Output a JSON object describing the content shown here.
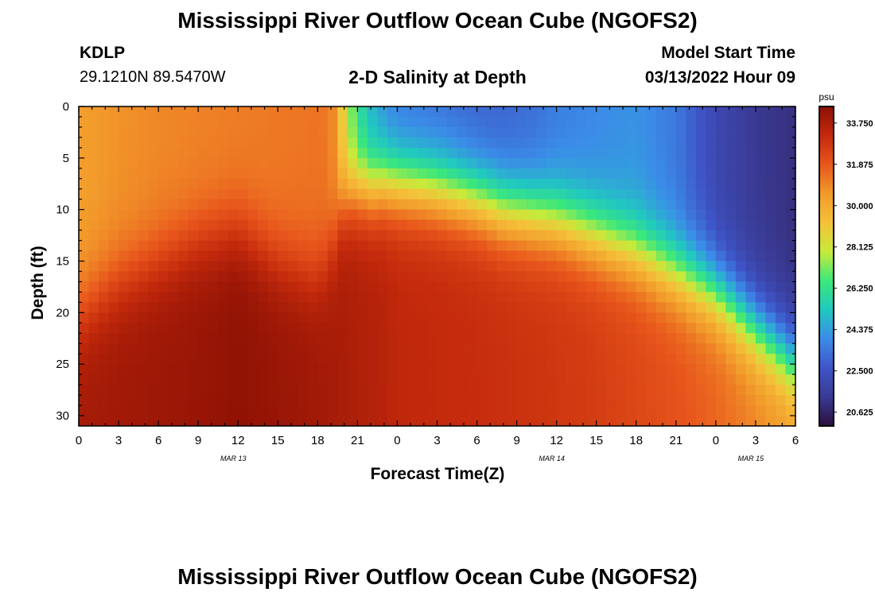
{
  "page": {
    "title_top": "Mississippi River Outflow Ocean Cube (NGOFS2)",
    "title_bottom": "Mississippi River Outflow Ocean Cube (NGOFS2)",
    "station_id": "KDLP",
    "station_coords": "29.1210N  89.5470W",
    "model_start_label": "Model Start Time",
    "model_start_value": "03/13/2022 Hour 09"
  },
  "chart_data": {
    "type": "heatmap",
    "title": "2-D Salinity at Depth",
    "xlabel": "Forecast Time(Z)",
    "ylabel": "Depth (ft)",
    "x_tick_labels": [
      "0",
      "3",
      "6",
      "9",
      "12",
      "15",
      "18",
      "21",
      "0",
      "3",
      "6",
      "9",
      "12",
      "15",
      "18",
      "21",
      "0",
      "3",
      "6"
    ],
    "x_range_hours": [
      0,
      54
    ],
    "date_labels": [
      {
        "label": "MAR 13",
        "hour": 12
      },
      {
        "label": "MAR 14",
        "hour": 36
      },
      {
        "label": "MAR 15",
        "hour": 51
      }
    ],
    "y_tick_labels": [
      "0",
      "5",
      "10",
      "15",
      "20",
      "25",
      "30"
    ],
    "y_range_ft": [
      0,
      31
    ],
    "y_inverted": true,
    "colorbar": {
      "unit": "psu",
      "tick_labels": [
        "33.750",
        "31.875",
        "30.000",
        "28.125",
        "26.250",
        "24.375",
        "22.500",
        "20.625"
      ],
      "range": [
        20,
        34.5
      ],
      "colors": [
        "#2a0f3d",
        "#3a3a94",
        "#3e55c8",
        "#3b8ce8",
        "#21c8c0",
        "#3be87a",
        "#c7ea3a",
        "#f5c13a",
        "#f29a2b",
        "#e8561c",
        "#c42a0c",
        "#8c1004"
      ]
    },
    "salinity_profile": {
      "hours": [
        0,
        3,
        6,
        9,
        12,
        15,
        18,
        19,
        20,
        21,
        22,
        23,
        24,
        27,
        30,
        32,
        34,
        36,
        39,
        42,
        45,
        48,
        51,
        54
      ],
      "surface_psu": [
        30.4,
        30.7,
        30.9,
        31.0,
        31.1,
        31.2,
        31.3,
        31.2,
        28.5,
        26.0,
        24.8,
        24.0,
        23.5,
        23.3,
        23.0,
        23.0,
        23.2,
        23.6,
        23.9,
        24.1,
        23.5,
        22.0,
        21.3,
        21.0
      ],
      "bottom_psu": [
        33.9,
        34.0,
        34.1,
        34.2,
        34.4,
        34.2,
        34.0,
        33.9,
        33.8,
        33.7,
        33.6,
        33.5,
        33.3,
        33.2,
        33.1,
        33.0,
        32.9,
        32.8,
        32.6,
        32.3,
        32.0,
        31.6,
        31.0,
        30.5
      ],
      "halocline_ft": [
        20.0,
        17.0,
        15.0,
        13.0,
        12.0,
        15.0,
        16.5,
        14.0,
        9.0,
        8.0,
        8.0,
        7.5,
        7.5,
        8.0,
        9.0,
        10.0,
        10.5,
        11.0,
        12.5,
        14.0,
        16.0,
        18.0,
        21.5,
        25.0
      ]
    }
  }
}
